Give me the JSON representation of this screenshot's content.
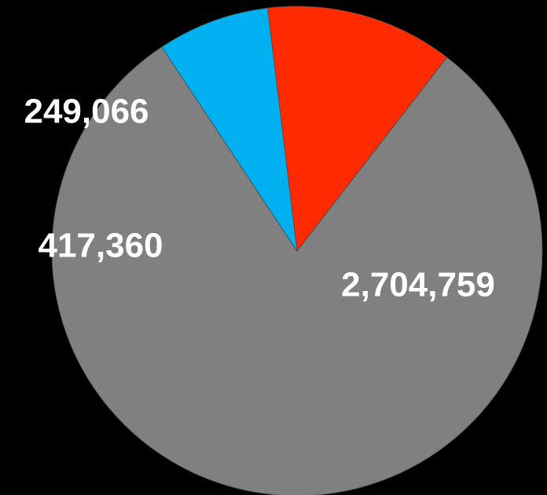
{
  "chart_data": {
    "type": "pie",
    "title": "",
    "slices": [
      {
        "label": "2,704,759",
        "value": 2704759,
        "color": "#808080"
      },
      {
        "label": "417,360",
        "value": 417360,
        "color": "#FF2A00"
      },
      {
        "label": "249,066",
        "value": 249066,
        "color": "#00B0F0"
      }
    ],
    "legend": "none",
    "background": "#000000"
  }
}
